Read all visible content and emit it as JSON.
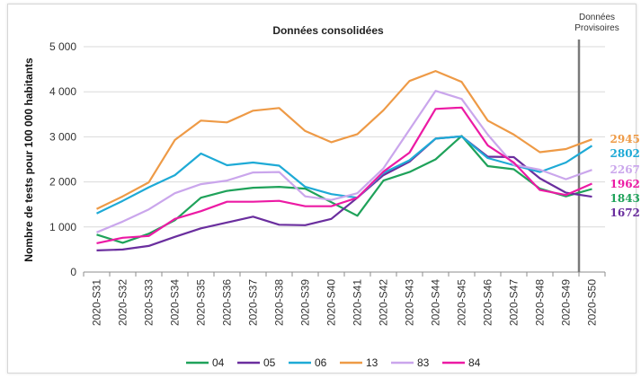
{
  "chart_data": {
    "type": "line",
    "title": "Données consolidées",
    "ylabel": "Nombre de tests pour 100 000 habitants",
    "xlabel": "",
    "ylim": [
      0,
      5000
    ],
    "yticks": [
      0,
      1000,
      2000,
      3000,
      4000,
      5000
    ],
    "ytick_labels": [
      "0",
      "1 000",
      "2 000",
      "3 000",
      "4 000",
      "5 000"
    ],
    "categories": [
      "2020-S31",
      "2020-S32",
      "2020-S33",
      "2020-S34",
      "2020-S35",
      "2020-S36",
      "2020-S37",
      "2020-S38",
      "2020-S39",
      "2020-S40",
      "2020-S41",
      "2020-S42",
      "2020-S43",
      "2020-S44",
      "2020-S45",
      "2020-S46",
      "2020-S47",
      "2020-S48",
      "2020-S49",
      "2020-S50"
    ],
    "annotation": {
      "text_line1": "Données",
      "text_line2": "Provisoires",
      "after_category_index": 18.5
    },
    "legend_position": "bottom",
    "series": [
      {
        "name": "04",
        "color": "#1fa25a",
        "end_label": "1843",
        "values": [
          830,
          650,
          850,
          1150,
          1650,
          1800,
          1870,
          1890,
          1850,
          1550,
          1250,
          2030,
          2220,
          2500,
          3020,
          2350,
          2280,
          1850,
          1680,
          1843
        ]
      },
      {
        "name": "05",
        "color": "#6a2e9e",
        "end_label": "1672",
        "values": [
          480,
          500,
          580,
          780,
          970,
          1100,
          1230,
          1050,
          1040,
          1180,
          1650,
          2150,
          2450,
          2960,
          3010,
          2560,
          2550,
          2080,
          1760,
          1672
        ]
      },
      {
        "name": "06",
        "color": "#1eaad6",
        "end_label": "2802",
        "values": [
          1300,
          1580,
          1880,
          2150,
          2630,
          2370,
          2430,
          2360,
          1890,
          1730,
          1650,
          2200,
          2480,
          2960,
          3010,
          2530,
          2370,
          2220,
          2430,
          2802
        ]
      },
      {
        "name": "13",
        "color": "#ee9a46",
        "end_label": "2945",
        "values": [
          1400,
          1680,
          1990,
          2930,
          3360,
          3320,
          3580,
          3640,
          3130,
          2880,
          3060,
          3590,
          4240,
          4460,
          4220,
          3360,
          3050,
          2660,
          2730,
          2945
        ]
      },
      {
        "name": "83",
        "color": "#caa6ec",
        "end_label": "2267",
        "values": [
          880,
          1120,
          1390,
          1750,
          1950,
          2030,
          2210,
          2220,
          1680,
          1600,
          1750,
          2300,
          3160,
          4020,
          3840,
          3050,
          2380,
          2270,
          2060,
          2267
        ]
      },
      {
        "name": "84",
        "color": "#ec1aa4",
        "end_label": "1962",
        "values": [
          640,
          760,
          800,
          1180,
          1350,
          1560,
          1560,
          1580,
          1460,
          1460,
          1650,
          2230,
          2650,
          3620,
          3650,
          2810,
          2430,
          1820,
          1710,
          1962
        ]
      }
    ]
  }
}
